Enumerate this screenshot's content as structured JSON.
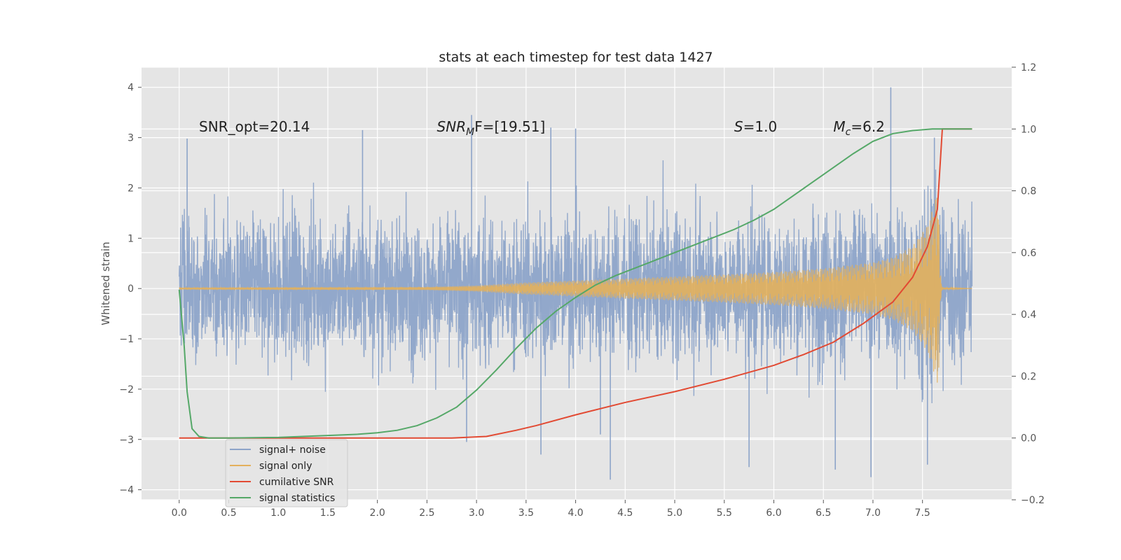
{
  "chart_data": {
    "type": "line",
    "title": "stats at each timestep for test data 1427",
    "ylabel": "Whitened strain",
    "y2label": "",
    "xlim": [
      -0.38,
      8.4
    ],
    "ylim": [
      -4.2,
      4.4
    ],
    "y2lim": [
      -0.2,
      1.2
    ],
    "x_ticks": [
      0.0,
      0.5,
      1.0,
      1.5,
      2.0,
      2.5,
      3.0,
      3.5,
      4.0,
      4.5,
      5.0,
      5.5,
      6.0,
      6.5,
      7.0,
      7.5
    ],
    "x_tick_labels": [
      "0.0",
      "0.5",
      "1.0",
      "1.5",
      "2.0",
      "2.5",
      "3.0",
      "3.5",
      "4.0",
      "4.5",
      "5.0",
      "5.5",
      "6.0",
      "6.5",
      "7.0",
      "7.5"
    ],
    "y_ticks": [
      4,
      3,
      2,
      1,
      0,
      -1,
      -2,
      -3,
      -4
    ],
    "y_tick_labels": [
      "4",
      "3",
      "2",
      "1",
      "0",
      "−1",
      "−2",
      "−3",
      "−4"
    ],
    "y2_ticks": [
      1.2,
      1.0,
      0.8,
      0.6,
      0.4,
      0.2,
      0.0,
      -0.2
    ],
    "y2_tick_labels": [
      "1.2",
      "1.0",
      "0.8",
      "0.6",
      "0.4",
      "0.2",
      "0.0",
      "−0.2"
    ],
    "grid": true,
    "legend_position": "lower-left",
    "annotations": [
      {
        "pre": "SNR_opt=20.14",
        "sym": "",
        "sub": "",
        "post": "",
        "x": 0.2,
        "y": 3.2
      },
      {
        "pre": "",
        "sym": "SNR",
        "sub": "M",
        "post": "F=[19.51]",
        "x": 2.6,
        "y": 3.2
      },
      {
        "pre": "",
        "sym": "S",
        "sub": "",
        "post": "=1.0",
        "x": 5.6,
        "y": 3.2
      },
      {
        "pre": "",
        "sym": "M",
        "sub": "c",
        "post": "=6.2",
        "x": 6.6,
        "y": 3.2
      }
    ],
    "series": [
      {
        "name": "signal+ noise",
        "axis": "left",
        "color": "#8da4c9",
        "kind": "noise",
        "x_range": [
          0.0,
          8.0
        ],
        "spikes": [
          {
            "x": 0.08,
            "y": 2.98
          },
          {
            "x": 1.85,
            "y": 3.15
          },
          {
            "x": 2.95,
            "y": 3.45
          },
          {
            "x": 3.75,
            "y": 3.2
          },
          {
            "x": 4.0,
            "y": 3.18
          },
          {
            "x": 7.18,
            "y": 4.0
          },
          {
            "x": 7.62,
            "y": 3.0
          },
          {
            "x": 3.65,
            "y": -3.3
          },
          {
            "x": 4.35,
            "y": -3.8
          },
          {
            "x": 5.75,
            "y": -3.55
          },
          {
            "x": 6.62,
            "y": -3.6
          },
          {
            "x": 6.98,
            "y": -3.75
          },
          {
            "x": 7.55,
            "y": -3.5
          },
          {
            "x": 2.9,
            "y": -3.05
          },
          {
            "x": 4.25,
            "y": -2.9
          }
        ]
      },
      {
        "name": "signal only",
        "axis": "left",
        "color": "#e3b05c",
        "kind": "chirp",
        "points": [
          [
            0.0,
            0.02
          ],
          [
            2.5,
            0.03
          ],
          [
            3.0,
            0.06
          ],
          [
            3.5,
            0.12
          ],
          [
            4.0,
            0.16
          ],
          [
            4.5,
            0.2
          ],
          [
            5.0,
            0.24
          ],
          [
            5.5,
            0.28
          ],
          [
            6.0,
            0.33
          ],
          [
            6.5,
            0.4
          ],
          [
            7.0,
            0.52
          ],
          [
            7.2,
            0.62
          ],
          [
            7.4,
            0.85
          ],
          [
            7.55,
            1.25
          ],
          [
            7.62,
            1.7
          ],
          [
            7.66,
            2.0
          ],
          [
            7.68,
            0.3
          ],
          [
            7.7,
            0.02
          ],
          [
            8.0,
            0.0
          ]
        ]
      },
      {
        "name": "cumilative SNR",
        "axis": "right",
        "color": "#e24a33",
        "points": [
          [
            0.0,
            0.0
          ],
          [
            1.0,
            0.0
          ],
          [
            2.0,
            0.0
          ],
          [
            2.75,
            0.0
          ],
          [
            3.1,
            0.005
          ],
          [
            3.4,
            0.025
          ],
          [
            3.6,
            0.04
          ],
          [
            4.0,
            0.075
          ],
          [
            4.5,
            0.115
          ],
          [
            5.0,
            0.15
          ],
          [
            5.5,
            0.19
          ],
          [
            6.0,
            0.235
          ],
          [
            6.3,
            0.27
          ],
          [
            6.6,
            0.31
          ],
          [
            6.9,
            0.37
          ],
          [
            7.2,
            0.44
          ],
          [
            7.4,
            0.52
          ],
          [
            7.55,
            0.62
          ],
          [
            7.65,
            0.74
          ],
          [
            7.7,
            1.0
          ],
          [
            8.0,
            1.0
          ]
        ]
      },
      {
        "name": "signal statistics",
        "axis": "right",
        "color": "#55a868",
        "points": [
          [
            0.0,
            0.48
          ],
          [
            0.05,
            0.3
          ],
          [
            0.08,
            0.15
          ],
          [
            0.13,
            0.03
          ],
          [
            0.2,
            0.005
          ],
          [
            0.3,
            0.0
          ],
          [
            0.5,
            0.0
          ],
          [
            1.0,
            0.002
          ],
          [
            1.5,
            0.008
          ],
          [
            1.8,
            0.012
          ],
          [
            2.0,
            0.017
          ],
          [
            2.2,
            0.025
          ],
          [
            2.4,
            0.04
          ],
          [
            2.6,
            0.065
          ],
          [
            2.8,
            0.1
          ],
          [
            3.0,
            0.155
          ],
          [
            3.2,
            0.22
          ],
          [
            3.4,
            0.29
          ],
          [
            3.6,
            0.355
          ],
          [
            3.8,
            0.41
          ],
          [
            4.0,
            0.455
          ],
          [
            4.2,
            0.495
          ],
          [
            4.4,
            0.525
          ],
          [
            4.6,
            0.55
          ],
          [
            4.8,
            0.575
          ],
          [
            5.0,
            0.6
          ],
          [
            5.2,
            0.625
          ],
          [
            5.4,
            0.65
          ],
          [
            5.6,
            0.675
          ],
          [
            5.8,
            0.705
          ],
          [
            6.0,
            0.74
          ],
          [
            6.2,
            0.785
          ],
          [
            6.4,
            0.83
          ],
          [
            6.6,
            0.875
          ],
          [
            6.8,
            0.92
          ],
          [
            7.0,
            0.96
          ],
          [
            7.2,
            0.985
          ],
          [
            7.4,
            0.995
          ],
          [
            7.6,
            1.0
          ],
          [
            8.0,
            1.0
          ]
        ]
      }
    ]
  }
}
